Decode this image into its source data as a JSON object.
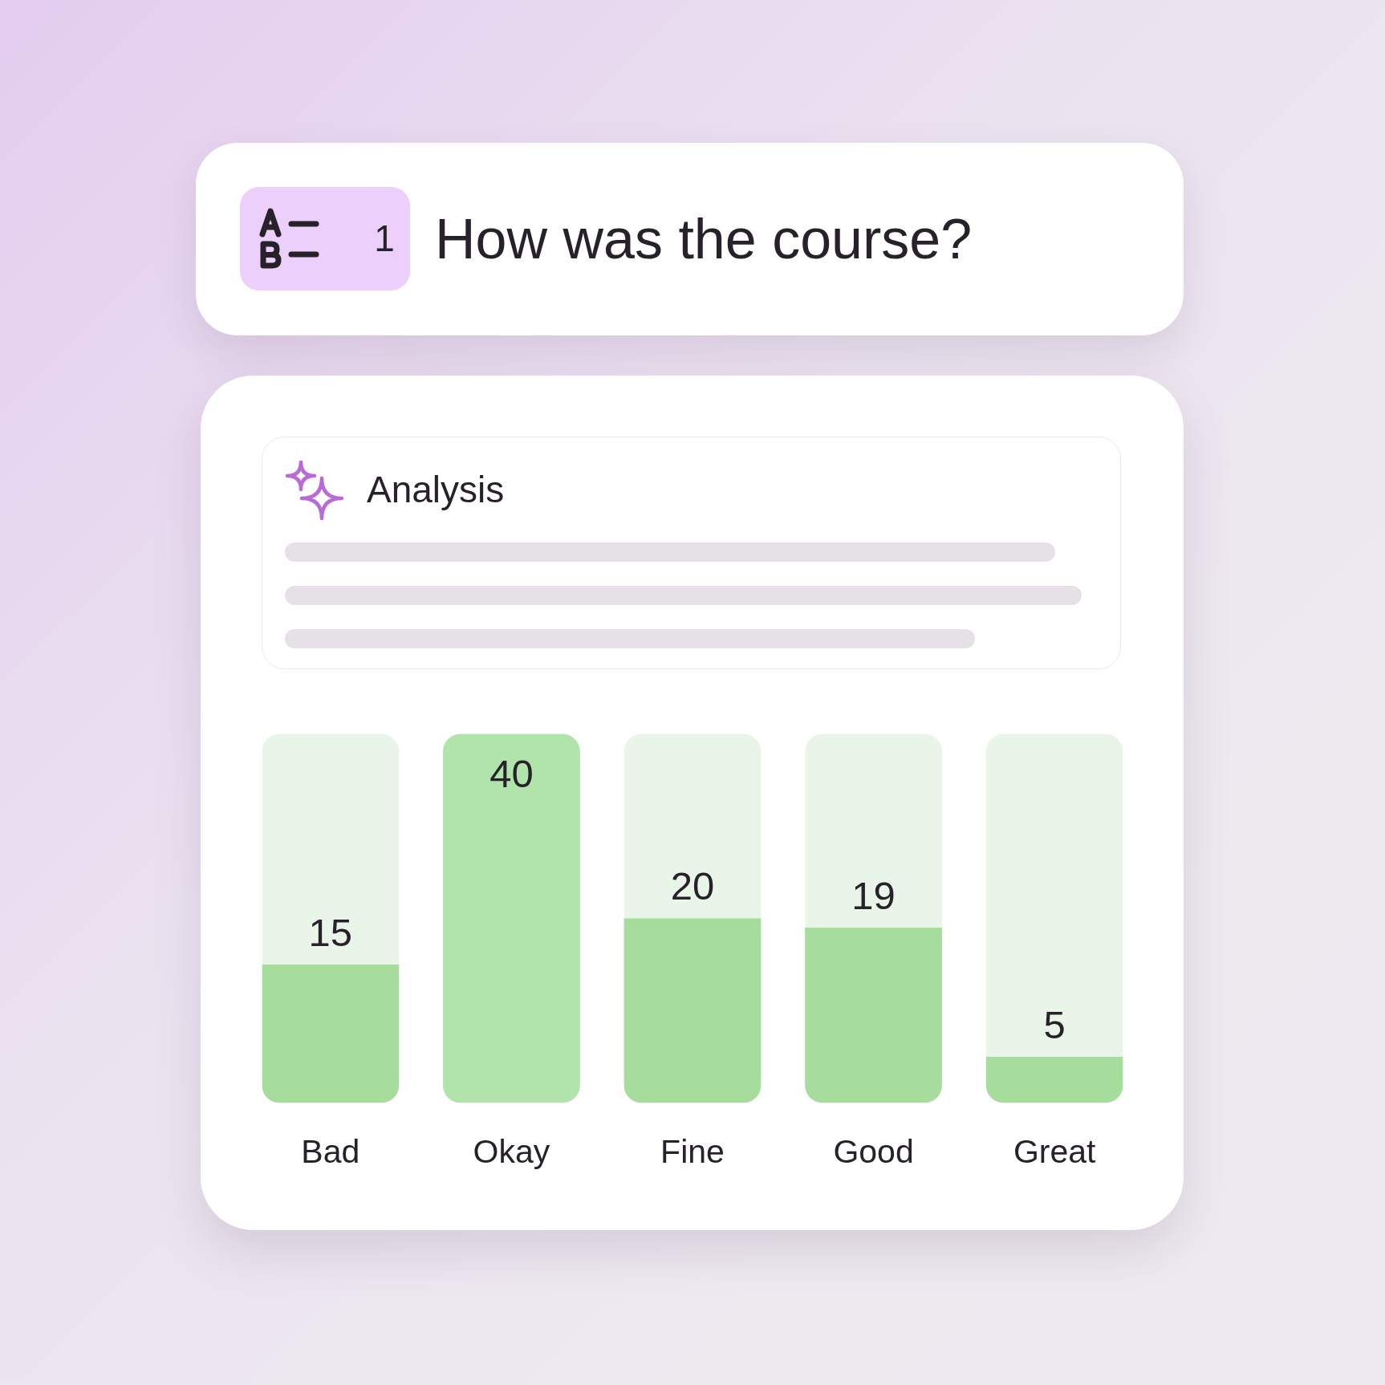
{
  "chart_data": {
    "type": "bar",
    "title": "How was the course?",
    "categories": [
      "Bad",
      "Okay",
      "Fine",
      "Good",
      "Great"
    ],
    "values": [
      15,
      40,
      20,
      19,
      5
    ],
    "colors": [
      "#a6dd9c",
      "#b0e4aa",
      "#a6dd9c",
      "#a6dd9c",
      "#a6dd9c"
    ],
    "ylim": [
      0,
      40
    ],
    "tick_labels": "x",
    "data_labels": true,
    "annotations": [
      "1",
      "Analysis"
    ]
  }
}
